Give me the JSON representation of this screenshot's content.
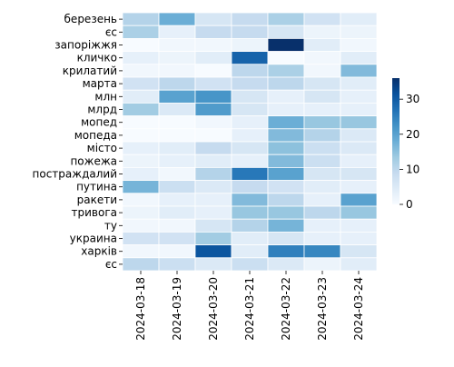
{
  "chart_data": {
    "type": "heatmap",
    "title": "",
    "xlabel": "",
    "ylabel": "",
    "x_labels": [
      "2024-03-18",
      "2024-03-19",
      "2024-03-20",
      "2024-03-21",
      "2024-03-22",
      "2024-03-23",
      "2024-03-24"
    ],
    "y_labels": [
      "березень",
      "єс",
      "запоріжжя",
      "кличко",
      "крилатий",
      "марта",
      "млн",
      "млрд",
      "мопед",
      "мопеда",
      "місто",
      "пожежа",
      "постраждалий",
      "путина",
      "ракети",
      "тривога",
      "ту",
      "украина",
      "харків",
      "єс"
    ],
    "values": [
      [
        11,
        18,
        6,
        9,
        12,
        7,
        4
      ],
      [
        12,
        3,
        9,
        9,
        6,
        2,
        2
      ],
      [
        0,
        1,
        1,
        2,
        36,
        4,
        1
      ],
      [
        3,
        2,
        4,
        29,
        0,
        1,
        4
      ],
      [
        1,
        1,
        0,
        10,
        12,
        1,
        16
      ],
      [
        7,
        10,
        7,
        9,
        10,
        6,
        4
      ],
      [
        4,
        20,
        22,
        6,
        3,
        6,
        3
      ],
      [
        13,
        5,
        21,
        6,
        3,
        3,
        3
      ],
      [
        0,
        0,
        1,
        3,
        18,
        14,
        14
      ],
      [
        0,
        0,
        0,
        3,
        16,
        11,
        5
      ],
      [
        3,
        4,
        9,
        6,
        15,
        8,
        5
      ],
      [
        2,
        3,
        4,
        3,
        16,
        8,
        3
      ],
      [
        3,
        1,
        11,
        26,
        20,
        6,
        6
      ],
      [
        17,
        8,
        5,
        9,
        7,
        4,
        3
      ],
      [
        1,
        3,
        3,
        16,
        10,
        3,
        20
      ],
      [
        2,
        4,
        3,
        14,
        14,
        10,
        14
      ],
      [
        1,
        1,
        6,
        11,
        17,
        3,
        3
      ],
      [
        7,
        7,
        13,
        4,
        6,
        3,
        3
      ],
      [
        1,
        1,
        31,
        4,
        25,
        24,
        6
      ],
      [
        10,
        8,
        5,
        8,
        5,
        2,
        4
      ]
    ],
    "colorbar": {
      "min": 0,
      "max": 36,
      "ticks": [
        0,
        10,
        20,
        30
      ]
    },
    "colormap": "Blues",
    "grid": true
  },
  "colors": {
    "low": "#f7fbff",
    "high": "#08306b",
    "cell_border": "#ffffff"
  }
}
